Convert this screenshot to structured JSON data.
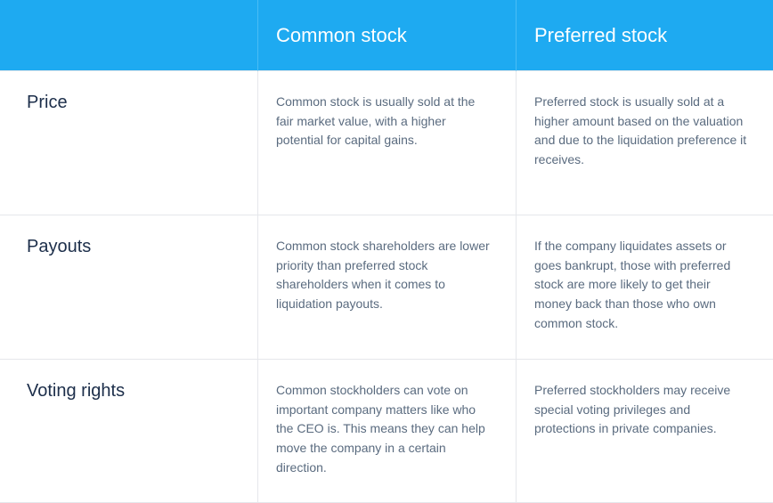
{
  "table": {
    "type": "comparison-table",
    "header_bg": "#1eaaf1",
    "header_text_color": "#ffffff",
    "row_label_color": "#1c2e4a",
    "body_text_color": "#5a6b7f",
    "border_color": "#e5e7eb",
    "columns": [
      "",
      "Common stock",
      "Preferred stock"
    ],
    "rows": [
      {
        "label": "Price",
        "common": "Common stock is usually sold at the fair market value, with a higher potential for capital gains.",
        "preferred": "Preferred stock is usually sold at a higher amount based on the valuation and due to the liquidation preference it receives."
      },
      {
        "label": "Payouts",
        "common": "Common stock shareholders are lower priority than preferred stock shareholders when it comes to liquidation payouts.",
        "preferred": "If the company liquidates assets or goes bankrupt, those with preferred stock are more likely to get their money back than those who own common stock."
      },
      {
        "label": "Voting rights",
        "common": "Common stockholders can vote on important company matters like who the CEO is. This means they can help move the company in a certain direction.",
        "preferred": "Preferred stockholders may receive special voting privileges and protections in private companies."
      }
    ]
  }
}
